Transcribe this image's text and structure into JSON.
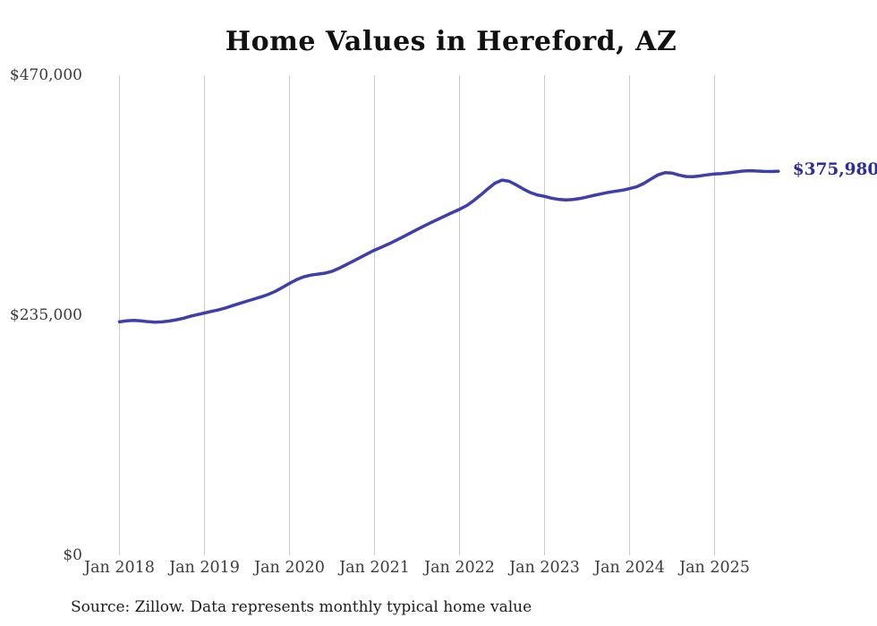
{
  "header": {
    "title": "Home Values in Hereford, AZ"
  },
  "footer": {
    "source_note": "Source: Zillow. Data represents monthly typical home value"
  },
  "colors": {
    "line": "#3e3eac",
    "end_label": "#2c2c9e",
    "grid": "#cbcbcb",
    "axis_label": "#3c3c3c",
    "title": "#111111",
    "source": "#1d1d1d",
    "background": "#ffffff"
  },
  "chart_data": {
    "type": "line",
    "title": "Home Values in Hereford, AZ",
    "xlabel": "",
    "ylabel": "",
    "ylim": [
      0,
      470000
    ],
    "grid": "vertical-only",
    "legend": "none",
    "y_ticks": [
      {
        "label": "$0",
        "value": 0
      },
      {
        "label": "$235,000",
        "value": 235000
      },
      {
        "label": "$470,000",
        "value": 470000
      }
    ],
    "x_ticks": [
      {
        "label": "Jan 2018",
        "month_index": 0
      },
      {
        "label": "Jan 2019",
        "month_index": 12
      },
      {
        "label": "Jan 2020",
        "month_index": 24
      },
      {
        "label": "Jan 2021",
        "month_index": 36
      },
      {
        "label": "Jan 2022",
        "month_index": 48
      },
      {
        "label": "Jan 2023",
        "month_index": 60
      },
      {
        "label": "Jan 2024",
        "month_index": 72
      },
      {
        "label": "Jan 2025",
        "month_index": 84
      }
    ],
    "end_label": "$375,980",
    "end_value": 375980,
    "series": [
      {
        "name": "Typical home value",
        "start": "Jan 2018",
        "end": "Oct 2025",
        "frequency": "monthly",
        "values": [
          228500,
          229500,
          230000,
          229500,
          228700,
          228200,
          228500,
          229300,
          230500,
          232000,
          234000,
          235600,
          237200,
          238800,
          240300,
          242200,
          244500,
          246700,
          248800,
          250900,
          253000,
          255400,
          258400,
          262200,
          266200,
          269800,
          272600,
          274300,
          275200,
          276200,
          278000,
          281000,
          284500,
          288000,
          291600,
          295200,
          298700,
          301700,
          304800,
          308200,
          311700,
          315300,
          318900,
          322400,
          325800,
          329100,
          332400,
          335600,
          338700,
          342300,
          347200,
          352800,
          358800,
          364300,
          367300,
          366200,
          362600,
          358600,
          355100,
          352700,
          351400,
          349600,
          348400,
          347900,
          348300,
          349300,
          350800,
          352400,
          353900,
          355300,
          356400,
          357400,
          359000,
          360800,
          364000,
          368300,
          372400,
          374600,
          374200,
          372200,
          370800,
          370700,
          371500,
          372500,
          373300,
          373700,
          374400,
          375300,
          376200,
          376500,
          376200,
          375800,
          375700,
          375980
        ]
      }
    ]
  }
}
